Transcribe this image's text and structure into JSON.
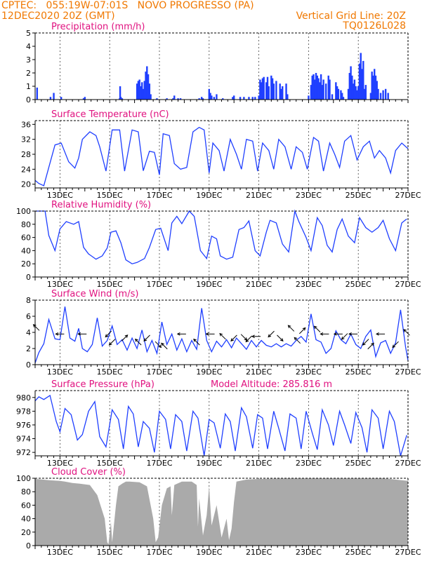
{
  "header": {
    "line1": "CPTEC:   055:19W-07:01S   NOVO PROGRESSO (PA)",
    "line2": "12DEC2020 20Z (GMT)",
    "vgrid": "Vertical Grid Line: 20Z",
    "code": "TQ0126L028"
  },
  "x_axis": {
    "ticks": [
      {
        "day": 1,
        "label": "13DEC"
      },
      {
        "day": 3,
        "label": "15DEC"
      },
      {
        "day": 5,
        "label": "17DEC"
      },
      {
        "day": 7,
        "label": "19DEC"
      },
      {
        "day": 9,
        "label": "21DEC"
      },
      {
        "day": 11,
        "label": "23DEC"
      },
      {
        "day": 13,
        "label": "25DEC"
      },
      {
        "day": 15,
        "label": "27DEC"
      }
    ],
    "xlim": [
      0,
      15
    ]
  },
  "chart_data": [
    {
      "id": "precip",
      "type": "bar",
      "title": "Precipitation (mm/h)",
      "ylim": [
        0,
        5
      ],
      "yticks": [
        0,
        1,
        2,
        3,
        4,
        5
      ],
      "color": "#1f3fff",
      "points": [
        [
          0.08,
          0.9
        ],
        [
          0.62,
          0.2
        ],
        [
          0.75,
          0.5
        ],
        [
          1.05,
          0.2
        ],
        [
          1.95,
          0.1
        ],
        [
          2.0,
          0.2
        ],
        [
          3.4,
          0.1
        ],
        [
          3.45,
          0.2
        ],
        [
          3.5,
          0.1
        ],
        [
          3.42,
          1.0
        ],
        [
          4.1,
          1.2
        ],
        [
          4.15,
          1.4
        ],
        [
          4.2,
          1.5
        ],
        [
          4.25,
          1.0
        ],
        [
          4.3,
          1.3
        ],
        [
          4.35,
          0.8
        ],
        [
          4.4,
          1.4
        ],
        [
          4.45,
          2.1
        ],
        [
          4.5,
          2.5
        ],
        [
          4.55,
          1.9
        ],
        [
          4.6,
          1.2
        ],
        [
          4.65,
          0.4
        ],
        [
          4.9,
          0.1
        ],
        [
          5.3,
          0.1
        ],
        [
          5.55,
          0.1
        ],
        [
          5.6,
          0.3
        ],
        [
          5.75,
          0.1
        ],
        [
          5.85,
          0.1
        ],
        [
          6.6,
          0.1
        ],
        [
          6.7,
          0.2
        ],
        [
          6.75,
          0.1
        ],
        [
          7.0,
          0.8
        ],
        [
          7.05,
          0.5
        ],
        [
          7.1,
          0.3
        ],
        [
          7.2,
          0.2
        ],
        [
          7.3,
          0.4
        ],
        [
          7.55,
          0.1
        ],
        [
          7.95,
          0.2
        ],
        [
          8.0,
          0.3
        ],
        [
          8.25,
          0.2
        ],
        [
          8.4,
          0.2
        ],
        [
          8.6,
          0.2
        ],
        [
          8.75,
          0.2
        ],
        [
          8.85,
          0.2
        ],
        [
          9.0,
          0.3
        ],
        [
          9.05,
          1.5
        ],
        [
          9.1,
          1.3
        ],
        [
          9.15,
          1.6
        ],
        [
          9.2,
          1.7
        ],
        [
          9.3,
          1.3
        ],
        [
          9.35,
          1.7
        ],
        [
          9.4,
          1.0
        ],
        [
          9.5,
          1.8
        ],
        [
          9.55,
          1.6
        ],
        [
          9.6,
          1.2
        ],
        [
          9.7,
          1.4
        ],
        [
          9.85,
          1.2
        ],
        [
          9.9,
          0.8
        ],
        [
          9.95,
          1.0
        ],
        [
          10.1,
          1.2
        ],
        [
          10.15,
          0.4
        ],
        [
          11.0,
          0.3
        ],
        [
          11.1,
          1.1
        ],
        [
          11.15,
          1.8
        ],
        [
          11.2,
          1.9
        ],
        [
          11.25,
          1.5
        ],
        [
          11.3,
          2.0
        ],
        [
          11.35,
          1.8
        ],
        [
          11.4,
          1.6
        ],
        [
          11.45,
          1.3
        ],
        [
          11.5,
          1.9
        ],
        [
          11.55,
          1.1
        ],
        [
          11.6,
          1.5
        ],
        [
          11.7,
          1.2
        ],
        [
          11.8,
          1.8
        ],
        [
          11.85,
          1.5
        ],
        [
          11.95,
          0.4
        ],
        [
          12.1,
          1.3
        ],
        [
          12.15,
          1.0
        ],
        [
          12.2,
          0.8
        ],
        [
          12.3,
          0.7
        ],
        [
          12.35,
          0.5
        ],
        [
          12.4,
          0.2
        ],
        [
          12.6,
          0.8
        ],
        [
          12.65,
          2.0
        ],
        [
          12.7,
          2.5
        ],
        [
          12.75,
          1.8
        ],
        [
          12.8,
          1.2
        ],
        [
          12.85,
          1.5
        ],
        [
          12.9,
          1.0
        ],
        [
          12.95,
          0.7
        ],
        [
          13.0,
          1.0
        ],
        [
          13.05,
          2.7
        ],
        [
          13.1,
          3.5
        ],
        [
          13.15,
          2.3
        ],
        [
          13.2,
          2.9
        ],
        [
          13.25,
          0.8
        ],
        [
          13.3,
          1.1
        ],
        [
          13.5,
          0.5
        ],
        [
          13.55,
          2.1
        ],
        [
          13.6,
          1.8
        ],
        [
          13.65,
          2.3
        ],
        [
          13.7,
          1.8
        ],
        [
          13.75,
          1.4
        ],
        [
          13.8,
          0.8
        ],
        [
          13.9,
          0.5
        ],
        [
          14.0,
          0.7
        ],
        [
          14.1,
          0.8
        ],
        [
          14.2,
          0.5
        ]
      ]
    },
    {
      "id": "temp",
      "type": "line",
      "title": "Surface Temperature (nC)",
      "ylim": [
        19,
        37
      ],
      "yticks": [
        20,
        24,
        28,
        32,
        36
      ],
      "color": "#1f3fff",
      "x": [
        0,
        0.15,
        0.35,
        0.55,
        0.8,
        1.05,
        1.35,
        1.6,
        1.75,
        1.9,
        2.2,
        2.45,
        2.6,
        2.85,
        3.1,
        3.4,
        3.6,
        3.9,
        4.15,
        4.35,
        4.6,
        4.8,
        5.0,
        5.15,
        5.4,
        5.6,
        5.85,
        6.1,
        6.35,
        6.6,
        6.8,
        7.0,
        7.15,
        7.4,
        7.6,
        7.85,
        8.1,
        8.3,
        8.5,
        8.75,
        8.95,
        9.15,
        9.4,
        9.6,
        9.8,
        10.05,
        10.3,
        10.5,
        10.75,
        10.95,
        11.2,
        11.4,
        11.6,
        11.85,
        12.05,
        12.25,
        12.45,
        12.7,
        12.95,
        13.2,
        13.45,
        13.65,
        13.85,
        14.1,
        14.3,
        14.5,
        14.75,
        15.0
      ],
      "values": [
        21,
        20.2,
        19.6,
        24.5,
        30.5,
        31,
        26,
        24.3,
        27,
        32,
        34,
        33,
        30,
        23.5,
        34.5,
        34.5,
        23.5,
        34.5,
        34,
        23.6,
        28.8,
        28.5,
        22.5,
        33.5,
        33,
        25.5,
        24,
        24.5,
        34,
        35.2,
        34.5,
        23,
        31,
        29,
        23.5,
        32,
        28,
        24,
        32,
        31.5,
        23.5,
        31,
        29,
        24,
        32,
        30,
        24,
        30,
        28.5,
        24,
        32.5,
        31.5,
        23.5,
        31,
        28,
        24.5,
        31.5,
        33,
        26.5,
        30,
        31.5,
        27,
        29,
        27,
        23,
        29,
        31,
        29.5
      ]
    },
    {
      "id": "rh",
      "type": "line",
      "title": "Relative Humidity (%)",
      "ylim": [
        0,
        100
      ],
      "yticks": [
        0,
        20,
        40,
        60,
        80,
        100
      ],
      "color": "#1f3fff",
      "x": [
        0,
        0.4,
        0.55,
        0.8,
        1.0,
        1.25,
        1.55,
        1.75,
        1.95,
        2.15,
        2.45,
        2.7,
        2.9,
        3.05,
        3.25,
        3.45,
        3.65,
        3.9,
        4.1,
        4.4,
        4.6,
        4.85,
        5.05,
        5.35,
        5.5,
        5.7,
        5.9,
        6.2,
        6.4,
        6.65,
        6.9,
        7.1,
        7.3,
        7.45,
        7.7,
        7.95,
        8.2,
        8.4,
        8.6,
        8.85,
        9.05,
        9.3,
        9.45,
        9.7,
        9.95,
        10.2,
        10.45,
        10.6,
        10.9,
        11.1,
        11.35,
        11.55,
        11.75,
        11.95,
        12.15,
        12.35,
        12.6,
        12.85,
        13.05,
        13.3,
        13.55,
        13.8,
        14.0,
        14.25,
        14.5,
        14.75,
        14.95
      ],
      "values": [
        100,
        100,
        63,
        40,
        73,
        84,
        80,
        84,
        45,
        35,
        27,
        32,
        44,
        68,
        70,
        52,
        26,
        20,
        22,
        28,
        45,
        72,
        74,
        40,
        82,
        92,
        81,
        100,
        92,
        40,
        28,
        62,
        58,
        32,
        27,
        30,
        72,
        75,
        85,
        40,
        32,
        68,
        86,
        82,
        50,
        38,
        100,
        85,
        60,
        40,
        90,
        78,
        48,
        38,
        72,
        88,
        62,
        52,
        90,
        75,
        68,
        75,
        86,
        58,
        40,
        82,
        88
      ]
    },
    {
      "id": "wind",
      "type": "line",
      "title": "Surface Wind (m/s)",
      "ylim": [
        0,
        8
      ],
      "yticks": [
        0,
        2,
        4,
        6,
        8
      ],
      "color": "#1f3fff",
      "x": [
        0,
        0.15,
        0.35,
        0.55,
        0.8,
        1.0,
        1.2,
        1.4,
        1.6,
        1.75,
        1.9,
        2.1,
        2.3,
        2.5,
        2.7,
        2.9,
        3.1,
        3.3,
        3.5,
        3.7,
        3.9,
        4.1,
        4.3,
        4.5,
        4.7,
        4.9,
        5.1,
        5.3,
        5.5,
        5.7,
        5.9,
        6.1,
        6.3,
        6.5,
        6.7,
        6.9,
        7.1,
        7.3,
        7.5,
        7.7,
        7.9,
        8.1,
        8.3,
        8.5,
        8.7,
        8.9,
        9.1,
        9.3,
        9.5,
        9.7,
        9.9,
        10.1,
        10.3,
        10.5,
        10.7,
        10.9,
        11.1,
        11.3,
        11.5,
        11.7,
        11.9,
        12.1,
        12.3,
        12.5,
        12.7,
        12.9,
        13.1,
        13.3,
        13.5,
        13.7,
        13.9,
        14.1,
        14.3,
        14.5,
        14.7,
        14.9,
        15.0
      ],
      "values": [
        0.2,
        1.5,
        2.6,
        5.6,
        3.2,
        3.1,
        7.2,
        3.3,
        2.9,
        4.5,
        2.0,
        1.6,
        2.5,
        5.8,
        2.3,
        3.0,
        4.8,
        2.5,
        3.1,
        1.8,
        3.3,
        2.0,
        4.3,
        1.6,
        3.0,
        1.4,
        5.3,
        2.5,
        3.8,
        1.8,
        3.2,
        1.6,
        3.0,
        1.9,
        7.0,
        3.0,
        1.6,
        2.9,
        2.2,
        3.1,
        2.1,
        3.3,
        2.6,
        1.9,
        3.0,
        2.2,
        3.0,
        2.4,
        2.2,
        2.6,
        2.2,
        2.6,
        2.3,
        3.0,
        3.5,
        2.8,
        6.3,
        3.1,
        2.8,
        1.4,
        2.0,
        4.2,
        3.1,
        2.6,
        3.8,
        2.5,
        2.0,
        3.5,
        4.3,
        1.0,
        2.7,
        3.0,
        1.4,
        2.7,
        6.8,
        2.2,
        0.5
      ]
    },
    {
      "id": "pressure",
      "type": "line",
      "title": "Surface Pressure (hPa)",
      "extra_label": "Model Altitude: 285.816 m",
      "ylim": [
        971.5,
        981
      ],
      "yticks": [
        972,
        974,
        976,
        978,
        980
      ],
      "color": "#1f3fff",
      "x": [
        0,
        0.15,
        0.35,
        0.6,
        0.85,
        1.0,
        1.2,
        1.45,
        1.7,
        1.9,
        2.15,
        2.4,
        2.6,
        2.85,
        3.1,
        3.35,
        3.55,
        3.75,
        3.95,
        4.15,
        4.35,
        4.6,
        4.8,
        5.0,
        5.25,
        5.45,
        5.65,
        5.9,
        6.1,
        6.35,
        6.55,
        6.8,
        7.0,
        7.2,
        7.45,
        7.65,
        7.85,
        8.05,
        8.3,
        8.5,
        8.75,
        8.95,
        9.15,
        9.35,
        9.6,
        9.8,
        10.05,
        10.25,
        10.5,
        10.7,
        10.9,
        11.15,
        11.35,
        11.55,
        11.8,
        12.0,
        12.25,
        12.45,
        12.7,
        12.9,
        13.15,
        13.35,
        13.55,
        13.8,
        14.0,
        14.25,
        14.45,
        14.7,
        14.95
      ],
      "values": [
        979.5,
        980.1,
        979.7,
        980.3,
        976.5,
        975,
        978.4,
        977.5,
        973.8,
        974.6,
        978,
        979.4,
        974.3,
        972.8,
        978.2,
        976.8,
        972.5,
        978.7,
        977.6,
        972.8,
        976.5,
        975.5,
        972,
        978,
        976.8,
        972.5,
        977.5,
        976.5,
        972.2,
        978,
        977,
        971.5,
        976.8,
        976.3,
        972.6,
        977.6,
        976.5,
        972.2,
        978.5,
        977.2,
        972.6,
        977.5,
        977,
        972.5,
        978,
        975.5,
        972.2,
        977.6,
        977,
        972.5,
        978,
        974.8,
        972.4,
        978.2,
        976,
        973,
        978,
        976,
        973.3,
        977.8,
        975.6,
        972,
        978.2,
        977,
        972.5,
        978,
        976.5,
        971.5,
        974.5
      ]
    },
    {
      "id": "cloud",
      "type": "area",
      "title": "Cloud Cover (%)",
      "ylim": [
        0,
        100
      ],
      "yticks": [
        0,
        20,
        40,
        60,
        80,
        100
      ],
      "color": "#aaaaaa",
      "x": [
        0,
        0.3,
        0.6,
        1.0,
        1.2,
        1.5,
        1.8,
        2.2,
        2.5,
        2.8,
        2.9,
        2.95,
        3.05,
        3.1,
        3.25,
        3.35,
        3.5,
        3.65,
        3.8,
        4.2,
        4.5,
        4.75,
        4.85,
        4.95,
        5.1,
        5.3,
        5.45,
        5.5,
        5.6,
        5.9,
        6.3,
        6.5,
        6.55,
        6.6,
        6.75,
        6.9,
        7.0,
        7.1,
        7.3,
        7.5,
        7.7,
        7.8,
        7.9,
        8.0,
        8.1,
        8.5,
        9.0,
        10.0,
        11.0,
        12.0,
        13.0,
        14.0,
        14.5,
        15.0
      ],
      "values": [
        99,
        98,
        97,
        96,
        95,
        93,
        92,
        90,
        75,
        40,
        5,
        2,
        35,
        5,
        60,
        88,
        92,
        95,
        95,
        94,
        88,
        40,
        5,
        12,
        60,
        85,
        88,
        45,
        90,
        95,
        95,
        90,
        28,
        70,
        15,
        45,
        88,
        30,
        60,
        12,
        40,
        8,
        25,
        65,
        95,
        98,
        99,
        100,
        100,
        100,
        100,
        100,
        98,
        96
      ]
    }
  ],
  "wind_arrows": [
    {
      "x": 0.05,
      "v": 4.6,
      "dir": "nw"
    },
    {
      "x": 1.0,
      "v": 3.8,
      "dir": "w"
    },
    {
      "x": 1.9,
      "v": 3.8,
      "dir": "w"
    },
    {
      "x": 2.95,
      "v": 3.8,
      "dir": "sw"
    },
    {
      "x": 3.1,
      "v": 2.8,
      "dir": "sw"
    },
    {
      "x": 3.6,
      "v": 3.3,
      "dir": "ne"
    },
    {
      "x": 4.15,
      "v": 2.8,
      "dir": "nw"
    },
    {
      "x": 4.5,
      "v": 3.3,
      "dir": "sw"
    },
    {
      "x": 4.95,
      "v": 2.5,
      "dir": "se"
    },
    {
      "x": 5.2,
      "v": 2.3,
      "dir": "nw"
    },
    {
      "x": 5.9,
      "v": 3.8,
      "dir": "w"
    },
    {
      "x": 6.5,
      "v": 2.8,
      "dir": "nw"
    },
    {
      "x": 7.05,
      "v": 3.8,
      "dir": "w"
    },
    {
      "x": 7.55,
      "v": 3.5,
      "dir": "nw"
    },
    {
      "x": 8.0,
      "v": 3.3,
      "dir": "sw"
    },
    {
      "x": 8.4,
      "v": 3.4,
      "dir": "se"
    },
    {
      "x": 8.6,
      "v": 3.2,
      "dir": "sw"
    },
    {
      "x": 8.9,
      "v": 3.5,
      "dir": "w"
    },
    {
      "x": 9.5,
      "v": 3.8,
      "dir": "sw"
    },
    {
      "x": 9.85,
      "v": 3.3,
      "dir": "se"
    },
    {
      "x": 10.3,
      "v": 4.5,
      "dir": "nw"
    },
    {
      "x": 10.55,
      "v": 3.0,
      "dir": "nw"
    },
    {
      "x": 10.75,
      "v": 4.2,
      "dir": "ne"
    },
    {
      "x": 11.35,
      "v": 4.4,
      "dir": "nw"
    },
    {
      "x": 11.65,
      "v": 3.8,
      "dir": "w"
    },
    {
      "x": 12.2,
      "v": 3.8,
      "dir": "w"
    },
    {
      "x": 12.45,
      "v": 3.5,
      "dir": "sw"
    },
    {
      "x": 12.8,
      "v": 3.8,
      "dir": "w"
    },
    {
      "x": 13.3,
      "v": 2.8,
      "dir": "sw"
    },
    {
      "x": 13.5,
      "v": 2.3,
      "dir": "ne"
    },
    {
      "x": 13.9,
      "v": 3.8,
      "dir": "w"
    },
    {
      "x": 14.5,
      "v": 2.5,
      "dir": "sw"
    },
    {
      "x": 14.95,
      "v": 4.0,
      "dir": "nw"
    }
  ]
}
